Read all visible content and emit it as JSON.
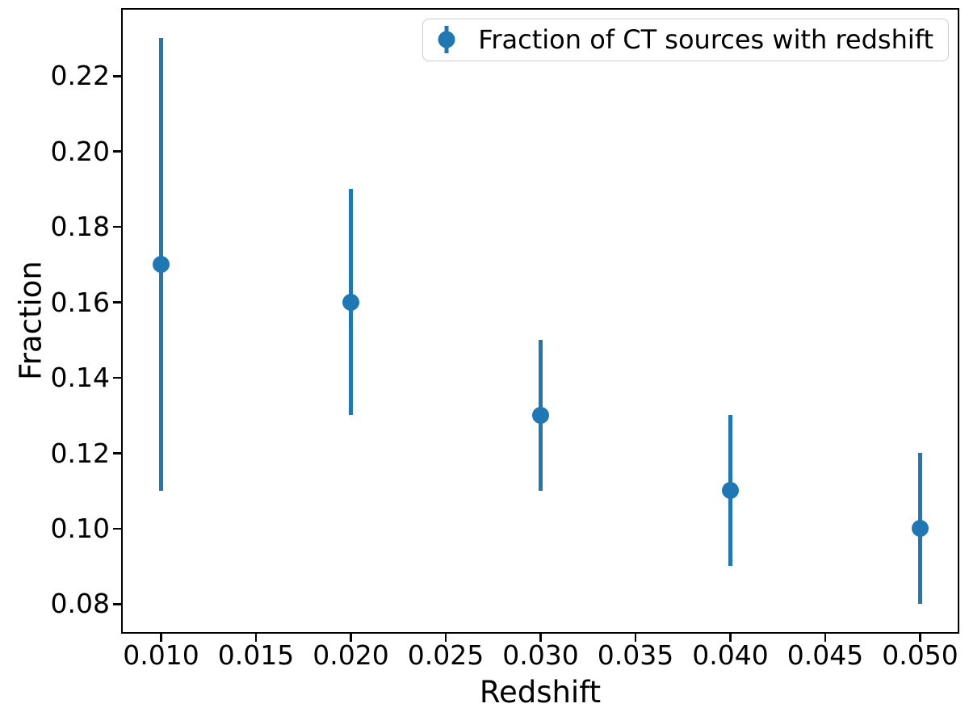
{
  "figure": {
    "background": "#ffffff",
    "spine_color": "#000000",
    "text_color": "#000000"
  },
  "chart_data": {
    "type": "scatter",
    "subtype": "errorbar",
    "title": "",
    "xlabel": "Redshift",
    "ylabel": "Fraction",
    "xlim": [
      0.008,
      0.052
    ],
    "ylim": [
      0.0725,
      0.2375
    ],
    "grid": false,
    "xticks": {
      "values": [
        0.01,
        0.015,
        0.02,
        0.025,
        0.03,
        0.035,
        0.04,
        0.045,
        0.05
      ],
      "labels": [
        "0.010",
        "0.015",
        "0.020",
        "0.025",
        "0.030",
        "0.035",
        "0.040",
        "0.045",
        "0.050"
      ]
    },
    "yticks": {
      "values": [
        0.08,
        0.1,
        0.12,
        0.14,
        0.16,
        0.18,
        0.2,
        0.22
      ],
      "labels": [
        "0.08",
        "0.10",
        "0.12",
        "0.14",
        "0.16",
        "0.18",
        "0.20",
        "0.22"
      ]
    },
    "legend": {
      "position": "upper-right",
      "border_color": "#cccccc",
      "background": "rgba(255,255,255,0.8)"
    },
    "series": [
      {
        "name": "Fraction of CT sources with redshift",
        "color": "#1f77b4",
        "marker": "circle",
        "x": [
          0.01,
          0.02,
          0.03,
          0.04,
          0.05
        ],
        "y": [
          0.17,
          0.16,
          0.13,
          0.11,
          0.1
        ],
        "yerr": [
          0.06,
          0.03,
          0.02,
          0.02,
          0.02
        ]
      }
    ]
  }
}
